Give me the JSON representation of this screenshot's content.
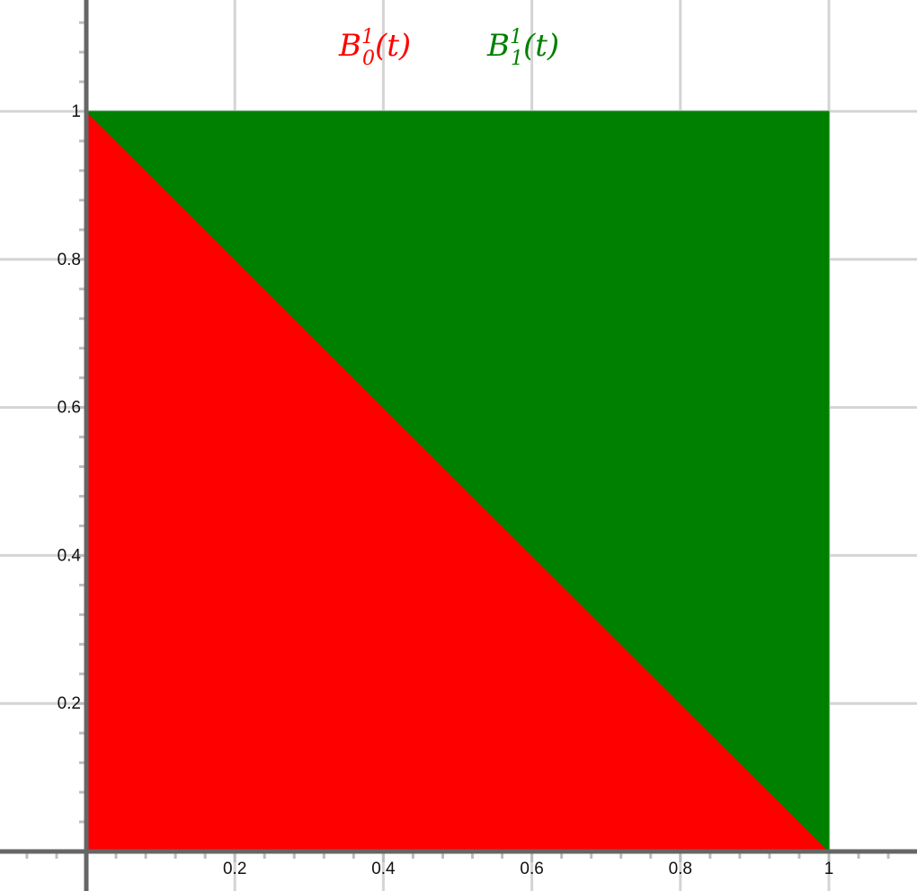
{
  "chart_data": {
    "type": "area",
    "stacked": true,
    "x": [
      0,
      1
    ],
    "series": [
      {
        "name": "B",
        "sub": "0",
        "sup": "1",
        "arg": "(t)",
        "values": [
          1,
          0
        ],
        "color": "#ff0000"
      },
      {
        "name": "B",
        "sub": "1",
        "sup": "1",
        "arg": "(t)",
        "values": [
          0,
          1
        ],
        "color": "#008000"
      }
    ],
    "x_ticks": [
      {
        "v": 0.2,
        "label": "0.2"
      },
      {
        "v": 0.4,
        "label": "0.4"
      },
      {
        "v": 0.6,
        "label": "0.6"
      },
      {
        "v": 0.8,
        "label": "0.8"
      },
      {
        "v": 1,
        "label": "1"
      }
    ],
    "y_ticks": [
      {
        "v": 0.2,
        "label": "0.2"
      },
      {
        "v": 0.4,
        "label": "0.4"
      },
      {
        "v": 0.6,
        "label": "0.6"
      },
      {
        "v": 0.8,
        "label": "0.8"
      },
      {
        "v": 1,
        "label": "1"
      }
    ],
    "xlim": [
      -0.11,
      1.12
    ],
    "ylim": [
      0,
      1.15
    ],
    "grid": true,
    "legend": "top",
    "colors": {
      "grid": "#d4d4d4",
      "axis": "#666666"
    }
  }
}
